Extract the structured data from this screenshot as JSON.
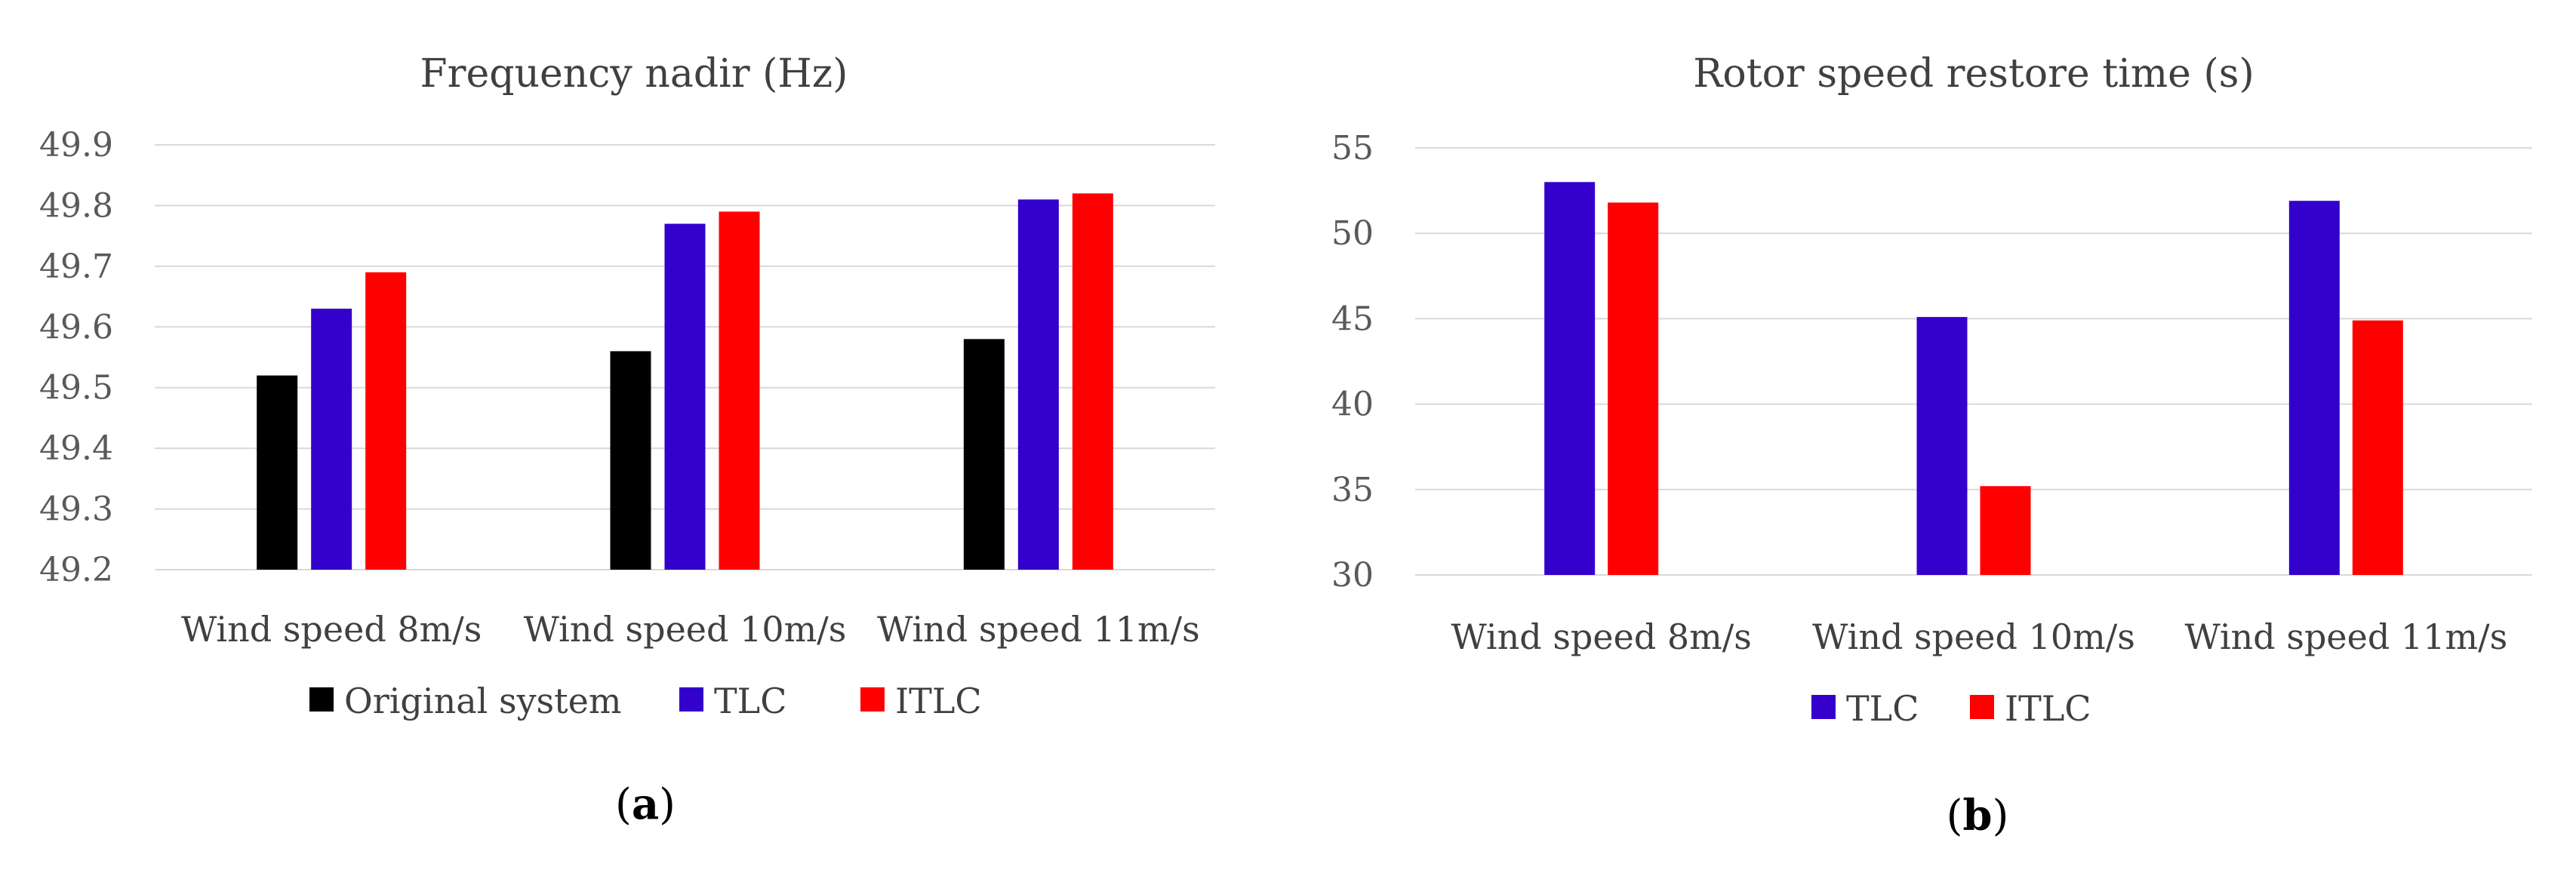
{
  "chart_data": [
    {
      "type": "bar",
      "title": "Frequency nadir (Hz)",
      "panel_label": "a",
      "categories": [
        "Wind speed 8m/s",
        "Wind speed 10m/s",
        "Wind speed 11m/s"
      ],
      "series": [
        {
          "name": "Original system",
          "color": "#000000",
          "values": [
            49.52,
            49.56,
            49.58
          ]
        },
        {
          "name": "TLC",
          "color": "#3300cc",
          "values": [
            49.63,
            49.77,
            49.81
          ]
        },
        {
          "name": "ITLC",
          "color": "#ff0000",
          "values": [
            49.69,
            49.79,
            49.82
          ]
        }
      ],
      "ylim": [
        49.2,
        49.9
      ],
      "yticks": [
        "49.2",
        "49.3",
        "49.4",
        "49.5",
        "49.6",
        "49.7",
        "49.8",
        "49.9"
      ],
      "grid": true,
      "legend_position": "bottom"
    },
    {
      "type": "bar",
      "title": "Rotor speed restore time (s)",
      "panel_label": "b",
      "categories": [
        "Wind speed 8m/s",
        "Wind speed 10m/s",
        "Wind speed 11m/s"
      ],
      "series": [
        {
          "name": "TLC",
          "color": "#3300cc",
          "values": [
            53.0,
            45.1,
            51.9
          ]
        },
        {
          "name": "ITLC",
          "color": "#ff0000",
          "values": [
            51.8,
            35.2,
            44.9
          ]
        }
      ],
      "ylim": [
        30,
        55
      ],
      "yticks": [
        "30",
        "35",
        "40",
        "45",
        "50",
        "55"
      ],
      "grid": true,
      "legend_position": "bottom"
    }
  ]
}
